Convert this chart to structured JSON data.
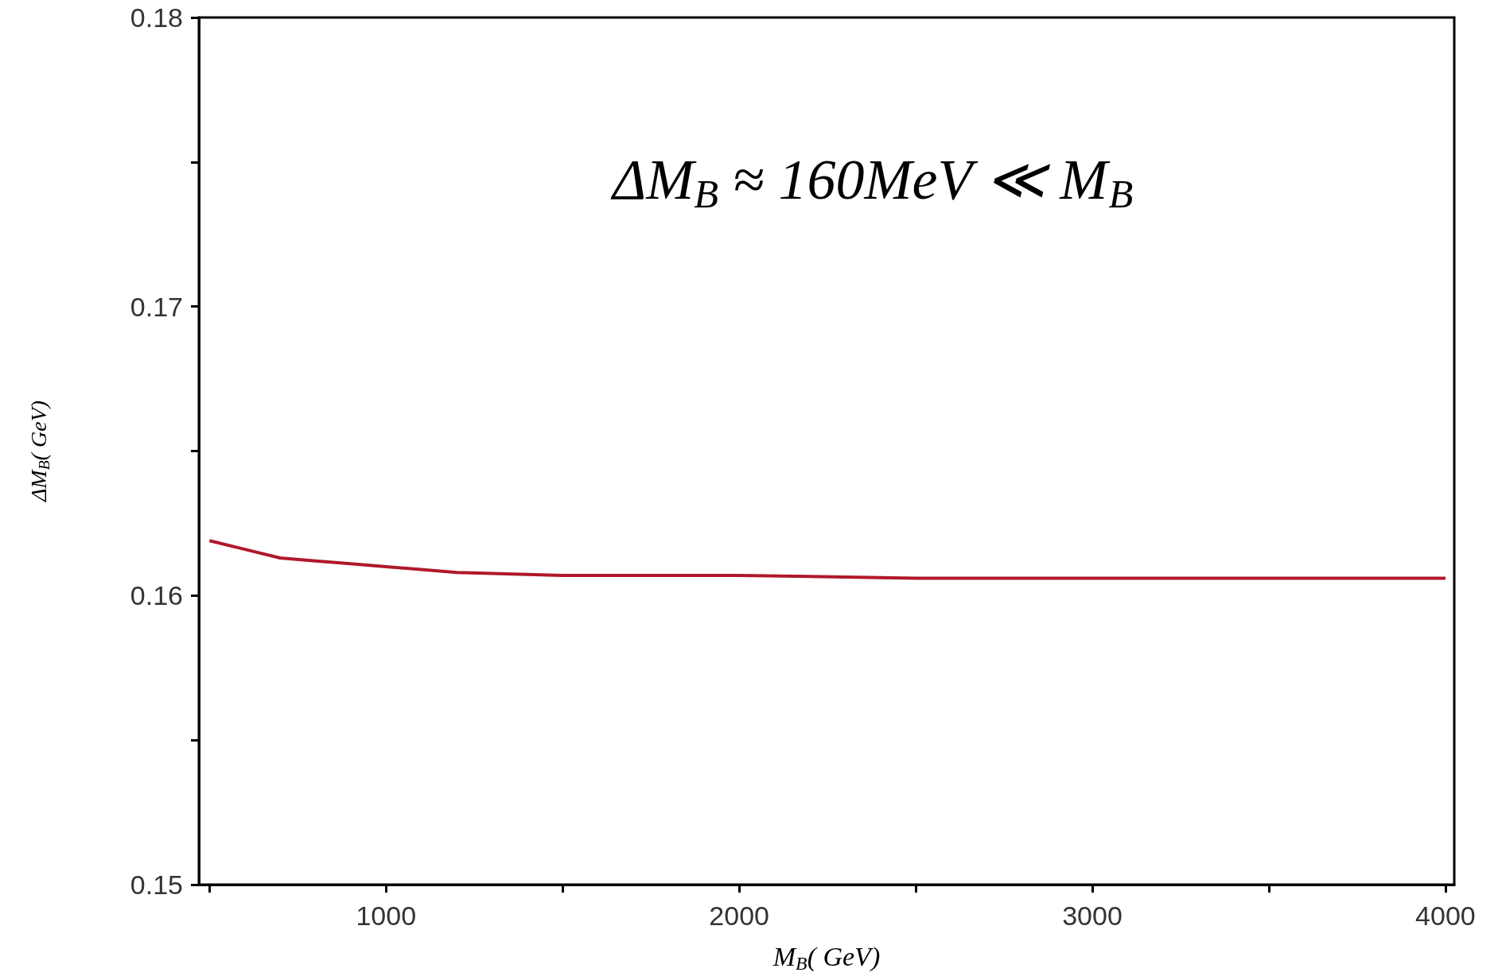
{
  "chart_data": {
    "type": "line",
    "xlabel": "M$_{B}$( GeV)",
    "ylabel": "ΔM$_{B}$( GeV)",
    "annotations": [
      "ΔM$_{B}$ ≈ 160MeV ≪ M$_{B}$"
    ],
    "x": [
      500,
      600,
      700,
      800,
      900,
      1000,
      1200,
      1500,
      2000,
      2500,
      3000,
      3500,
      4000
    ],
    "series": [
      {
        "color": "#b0182a",
        "values": [
          0.1619,
          0.1616,
          0.1613,
          0.1612,
          0.1611,
          0.161,
          0.1608,
          0.1607,
          0.1607,
          0.1606,
          0.1606,
          0.1606,
          0.1606
        ]
      }
    ],
    "xlim": [
      470,
      4025
    ],
    "xticks": [
      {
        "value": 500,
        "label": null
      },
      1000,
      {
        "value": 1500,
        "label": null
      },
      2000,
      {
        "value": 2500,
        "label": null
      },
      3000,
      {
        "value": 3500,
        "label": null
      },
      4000
    ],
    "ylim": [
      0.15,
      0.18
    ],
    "yticks": [
      0.15,
      {
        "value": 0.155,
        "label": null
      },
      0.16,
      {
        "value": 0.165,
        "label": null
      },
      0.17,
      {
        "value": 0.175,
        "label": null
      },
      0.18
    ],
    "grid": false,
    "marker": "none",
    "line_style": "solid"
  }
}
